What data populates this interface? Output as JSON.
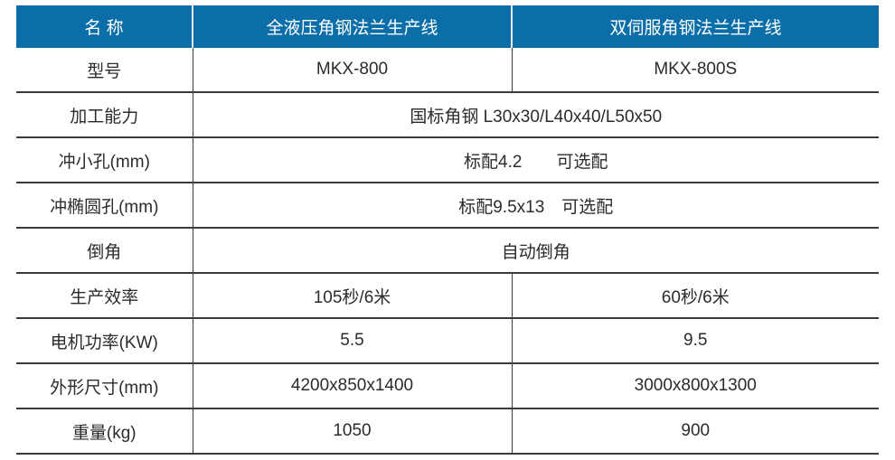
{
  "header": [
    "名 称",
    "全液压角钢法兰生产线",
    "双伺服角钢法兰生产线"
  ],
  "rows": [
    {
      "label": "型号",
      "a": "MKX-800",
      "b": "MKX-800S"
    },
    {
      "label": "加工能力",
      "span": "国标角钢 L30x30/L40x40/L50x50"
    },
    {
      "label": "冲小孔(mm)",
      "span": "标配4.2　　可选配"
    },
    {
      "label": "冲椭圆孔(mm)",
      "span": "标配9.5x13　可选配"
    },
    {
      "label": "倒角",
      "span": "自动倒角"
    },
    {
      "label": "生产效率",
      "a": "105秒/6米",
      "b": "60秒/6米"
    },
    {
      "label": "电机功率(KW)",
      "a": "5.5",
      "b": "9.5"
    },
    {
      "label": "外形尺寸(mm)",
      "a": "4200x850x1400",
      "b": "3000x800x1300"
    },
    {
      "label": "重量(kg)",
      "a": "1050",
      "b": "900"
    }
  ],
  "colors": {
    "header_bg": "#0b6ea8"
  }
}
